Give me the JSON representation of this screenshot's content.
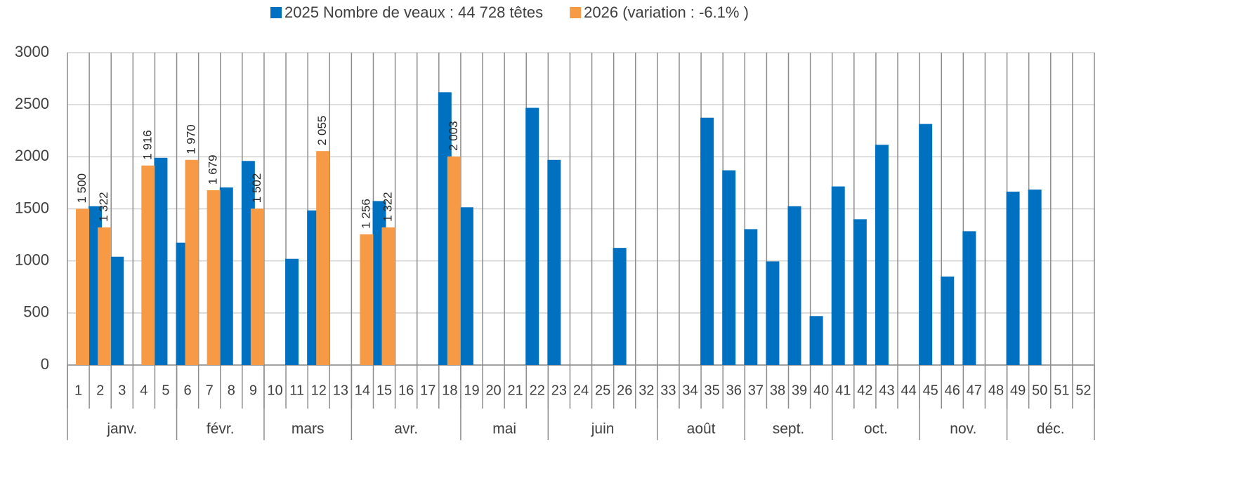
{
  "chart_data": {
    "type": "bar",
    "categories": [
      "1",
      "2",
      "3",
      "4",
      "5",
      "6",
      "7",
      "8",
      "9",
      "10",
      "11",
      "12",
      "13",
      "14",
      "15",
      "16",
      "17",
      "18",
      "19",
      "20",
      "21",
      "22",
      "23",
      "24",
      "25",
      "26",
      "32",
      "33",
      "34",
      "35",
      "36",
      "37",
      "38",
      "39",
      "40",
      "41",
      "42",
      "43",
      "44",
      "45",
      "46",
      "47",
      "48",
      "49",
      "50",
      "51",
      "52"
    ],
    "groups": [
      {
        "label": "janv.",
        "span": 5
      },
      {
        "label": "févr.",
        "span": 4
      },
      {
        "label": "mars",
        "span": 4
      },
      {
        "label": "avr.",
        "span": 5
      },
      {
        "label": "mai",
        "span": 4
      },
      {
        "label": "juin",
        "span": 5
      },
      {
        "label": "août",
        "span": 4
      },
      {
        "label": "sept.",
        "span": 4
      },
      {
        "label": "oct.",
        "span": 4
      },
      {
        "label": "nov.",
        "span": 4
      },
      {
        "label": "déc.",
        "span": 4
      }
    ],
    "series": [
      {
        "name": "2025 Nombre de veaux : 44 728 têtes",
        "color": "#0070c0",
        "values": [
          null,
          1525,
          1040,
          null,
          1990,
          1175,
          null,
          1705,
          1960,
          null,
          1020,
          1485,
          null,
          null,
          1575,
          null,
          null,
          2620,
          1515,
          null,
          null,
          2470,
          1970,
          null,
          null,
          1125,
          null,
          null,
          null,
          2375,
          1870,
          1305,
          995,
          1525,
          470,
          1715,
          1400,
          2115,
          null,
          2315,
          850,
          1285,
          null,
          1665,
          1685,
          null,
          null
        ]
      },
      {
        "name": "2026 (variation : -6.1% )",
        "color": "#f79a46",
        "values": [
          1500,
          1322,
          null,
          1916,
          null,
          1970,
          1679,
          null,
          1502,
          null,
          null,
          2055,
          null,
          1256,
          1322,
          null,
          null,
          2003,
          null,
          null,
          null,
          null,
          null,
          null,
          null,
          null,
          null,
          null,
          null,
          null,
          null,
          null,
          null,
          null,
          null,
          null,
          null,
          null,
          null,
          null,
          null,
          null,
          null,
          null,
          null,
          null,
          null
        ],
        "value_labels": [
          "1 500",
          "1 322",
          null,
          "1 916",
          null,
          "1 970",
          "1 679",
          null,
          "1 502",
          null,
          null,
          "2 055",
          null,
          "1 256",
          "1 322",
          null,
          null,
          "2 003",
          null,
          null,
          null,
          null,
          null,
          null,
          null,
          null,
          null,
          null,
          null,
          null,
          null,
          null,
          null,
          null,
          null,
          null,
          null,
          null,
          null,
          null,
          null,
          null,
          null,
          null,
          null,
          null,
          null
        ]
      }
    ],
    "ylim": [
      0,
      3000
    ],
    "yticks": [
      0,
      500,
      1000,
      1500,
      2000,
      2500,
      3000
    ],
    "grid": true,
    "legend": "top"
  }
}
